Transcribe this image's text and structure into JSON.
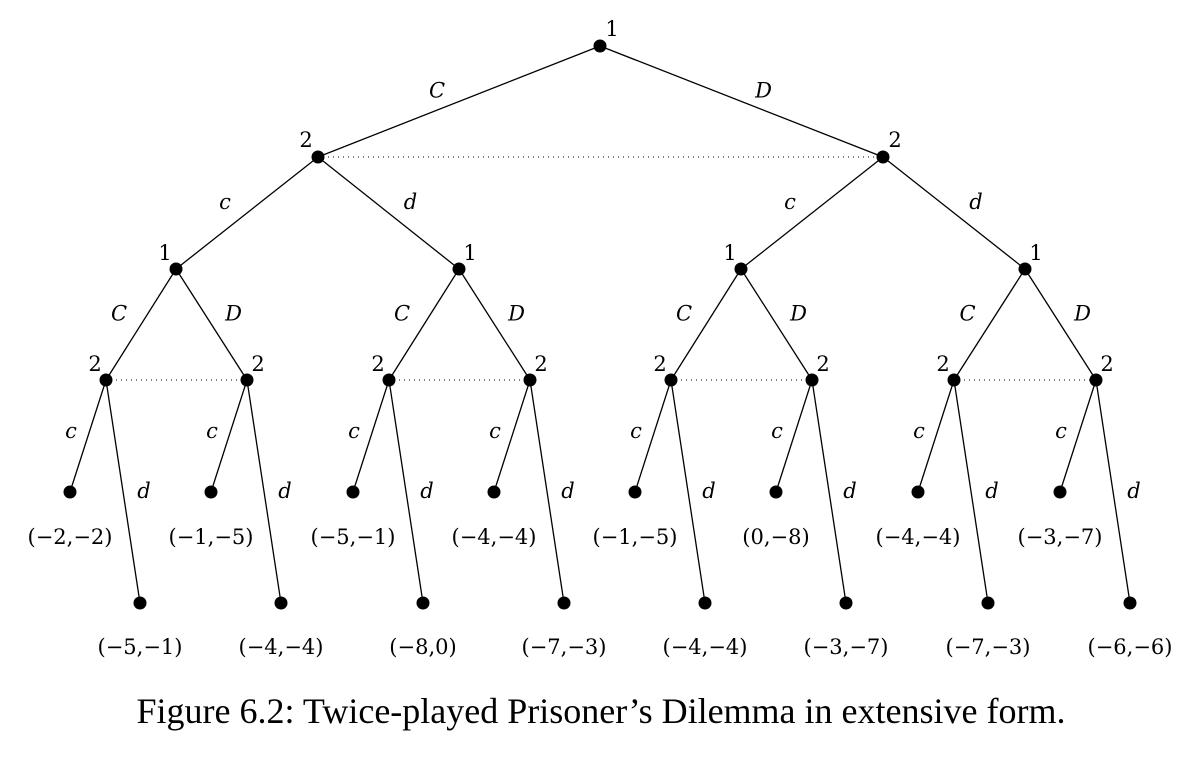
{
  "caption": "Figure 6.2: Twice-played Prisoner’s Dilemma in extensive form.",
  "tree": {
    "root": {
      "player": "1",
      "moves": [
        {
          "label": "C",
          "node": {
            "player": "2",
            "moves": [
              {
                "label": "c",
                "node": {
                  "player": "1",
                  "moves": [
                    {
                      "label": "C",
                      "node": {
                        "player": "2",
                        "moves": [
                          {
                            "label": "c",
                            "payoff": "(−2,−2)"
                          },
                          {
                            "label": "d",
                            "payoff": "(−5,−1)"
                          }
                        ]
                      }
                    },
                    {
                      "label": "D",
                      "node": {
                        "player": "2",
                        "moves": [
                          {
                            "label": "c",
                            "payoff": "(−1,−5)"
                          },
                          {
                            "label": "d",
                            "payoff": "(−4,−4)"
                          }
                        ]
                      }
                    }
                  ]
                }
              },
              {
                "label": "d",
                "node": {
                  "player": "1",
                  "moves": [
                    {
                      "label": "C",
                      "node": {
                        "player": "2",
                        "moves": [
                          {
                            "label": "c",
                            "payoff": "(−5,−1)"
                          },
                          {
                            "label": "d",
                            "payoff": "(−8,0)"
                          }
                        ]
                      }
                    },
                    {
                      "label": "D",
                      "node": {
                        "player": "2",
                        "moves": [
                          {
                            "label": "c",
                            "payoff": "(−4,−4)"
                          },
                          {
                            "label": "d",
                            "payoff": "(−7,−3)"
                          }
                        ]
                      }
                    }
                  ]
                }
              }
            ]
          }
        },
        {
          "label": "D",
          "node": {
            "player": "2",
            "moves": [
              {
                "label": "c",
                "node": {
                  "player": "1",
                  "moves": [
                    {
                      "label": "C",
                      "node": {
                        "player": "2",
                        "moves": [
                          {
                            "label": "c",
                            "payoff": "(−1,−5)"
                          },
                          {
                            "label": "d",
                            "payoff": "(−4,−4)"
                          }
                        ]
                      }
                    },
                    {
                      "label": "D",
                      "node": {
                        "player": "2",
                        "moves": [
                          {
                            "label": "c",
                            "payoff": "(0,−8)"
                          },
                          {
                            "label": "d",
                            "payoff": "(−3,−7)"
                          }
                        ]
                      }
                    }
                  ]
                }
              },
              {
                "label": "d",
                "node": {
                  "player": "1",
                  "moves": [
                    {
                      "label": "C",
                      "node": {
                        "player": "2",
                        "moves": [
                          {
                            "label": "c",
                            "payoff": "(−4,−4)"
                          },
                          {
                            "label": "d",
                            "payoff": "(−7,−3)"
                          }
                        ]
                      }
                    },
                    {
                      "label": "D",
                      "node": {
                        "player": "2",
                        "moves": [
                          {
                            "label": "c",
                            "payoff": "(−3,−7)"
                          },
                          {
                            "label": "d",
                            "payoff": "(−6,−6)"
                          }
                        ]
                      }
                    }
                  ]
                }
              }
            ]
          }
        }
      ]
    }
  }
}
